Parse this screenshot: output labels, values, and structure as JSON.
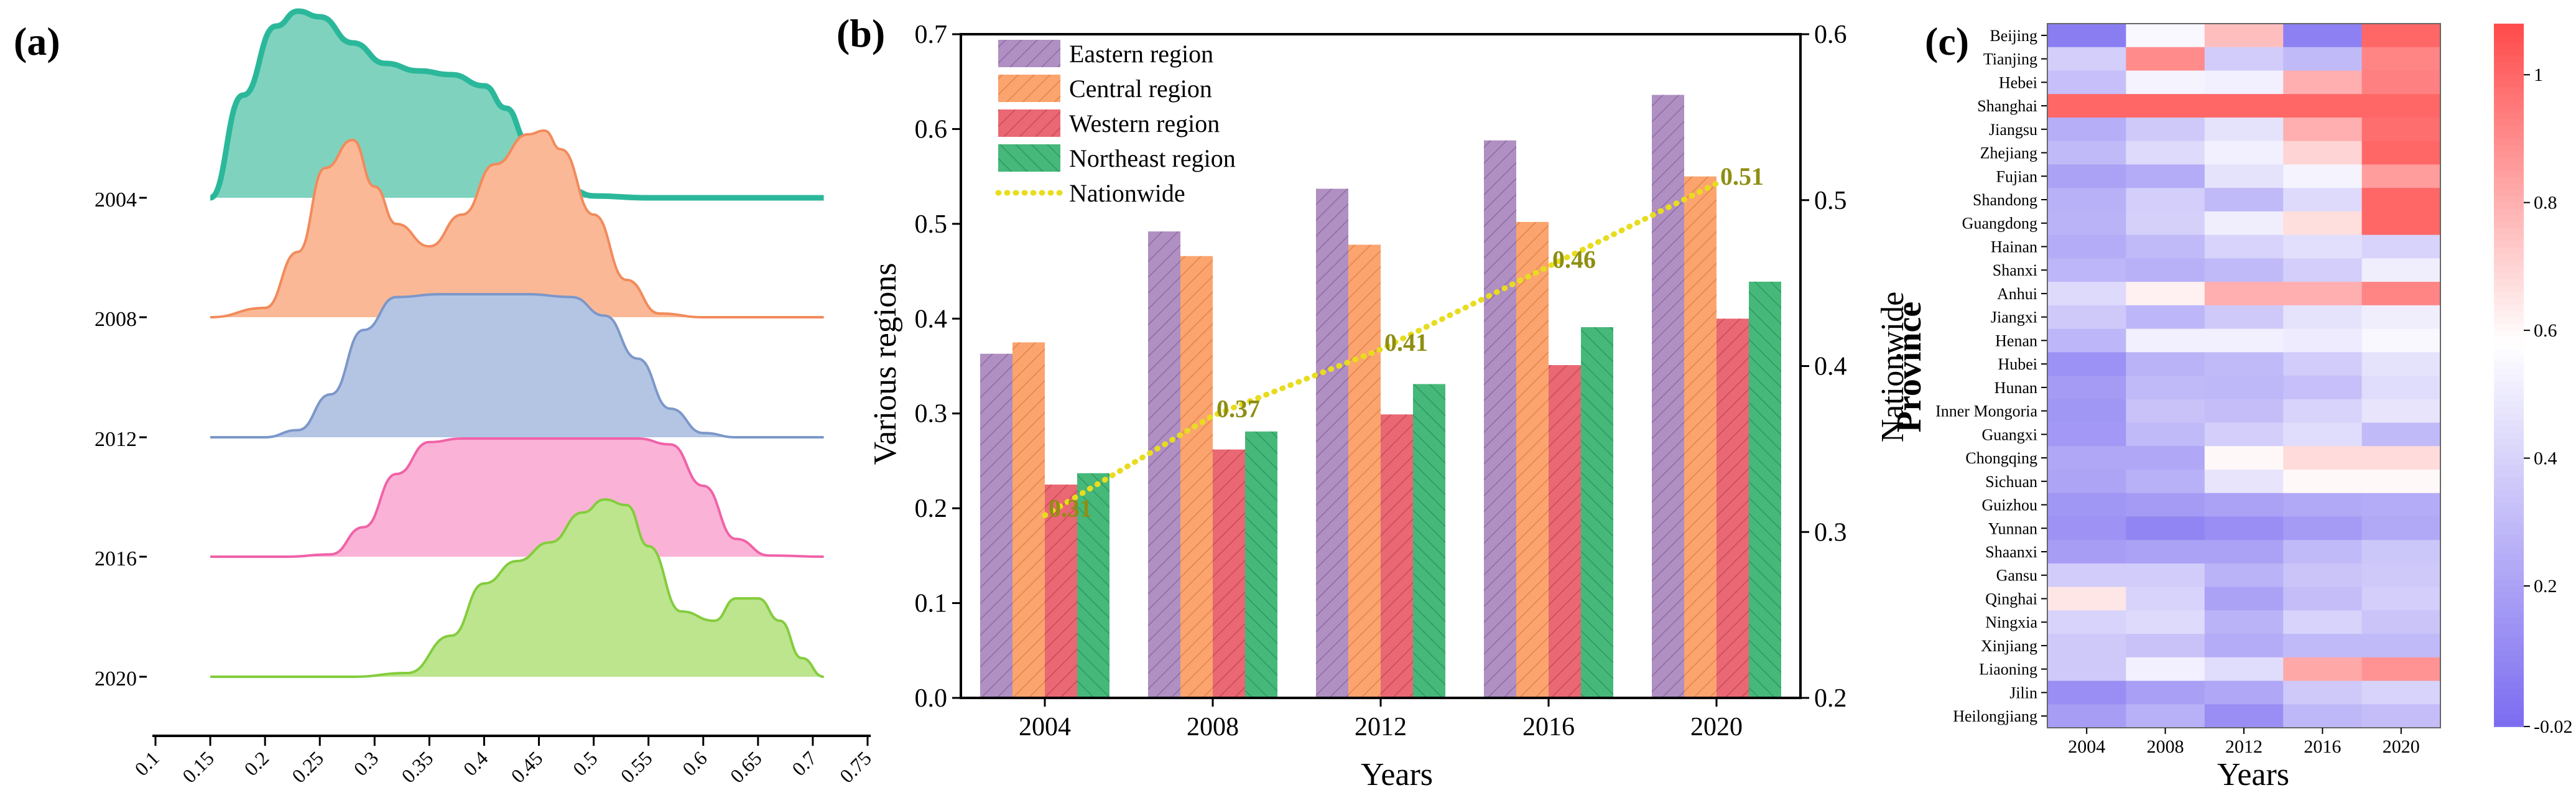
{
  "chart_data": [
    {
      "type": "area",
      "panel_label": "(a)",
      "subtype": "ridgeline-density",
      "categories": [
        "2004",
        "2008",
        "2012",
        "2016",
        "2020"
      ],
      "xlim": [
        0.1,
        0.75
      ],
      "x_ticks": [
        "0.1",
        "0.15",
        "0.2",
        "0.25",
        "0.3",
        "0.35",
        "0.4",
        "0.45",
        "0.5",
        "0.55",
        "0.6",
        "0.65",
        "0.7",
        "0.75"
      ],
      "series": [
        {
          "name": "2004",
          "color": "#2BB89A",
          "fill": "#7FD3BE",
          "x": [
            0.15,
            0.18,
            0.21,
            0.23,
            0.25,
            0.28,
            0.31,
            0.34,
            0.37,
            0.4,
            0.42,
            0.44,
            0.46,
            0.48,
            0.5,
            0.55,
            0.6,
            0.65,
            0.71
          ],
          "density": [
            0.0,
            0.55,
            0.92,
            1.0,
            0.97,
            0.83,
            0.72,
            0.68,
            0.66,
            0.6,
            0.48,
            0.3,
            0.12,
            0.04,
            0.01,
            0.0,
            0.0,
            0.0,
            0.0
          ]
        },
        {
          "name": "2008",
          "color": "#F28A5B",
          "fill": "#FBB896",
          "x": [
            0.15,
            0.2,
            0.23,
            0.255,
            0.28,
            0.3,
            0.32,
            0.35,
            0.38,
            0.41,
            0.44,
            0.455,
            0.47,
            0.5,
            0.53,
            0.56,
            0.6,
            0.65,
            0.71
          ],
          "density": [
            0.0,
            0.05,
            0.35,
            0.8,
            0.95,
            0.7,
            0.5,
            0.38,
            0.55,
            0.82,
            0.98,
            1.0,
            0.9,
            0.55,
            0.2,
            0.02,
            0.0,
            0.0,
            0.0
          ]
        },
        {
          "name": "2012",
          "color": "#7C97C9",
          "fill": "#B4C5E4",
          "x": [
            0.15,
            0.2,
            0.23,
            0.26,
            0.29,
            0.32,
            0.36,
            0.4,
            0.44,
            0.48,
            0.51,
            0.54,
            0.57,
            0.6,
            0.63,
            0.66,
            0.71
          ],
          "density": [
            0.0,
            0.0,
            0.05,
            0.3,
            0.75,
            0.98,
            1.0,
            1.0,
            1.0,
            0.98,
            0.85,
            0.55,
            0.2,
            0.03,
            0.0,
            0.0,
            0.0
          ]
        },
        {
          "name": "2016",
          "color": "#F062A8",
          "fill": "#FAB3D6",
          "x": [
            0.15,
            0.22,
            0.26,
            0.29,
            0.32,
            0.35,
            0.38,
            0.42,
            0.46,
            0.5,
            0.54,
            0.57,
            0.6,
            0.63,
            0.66,
            0.71
          ],
          "density": [
            0.0,
            0.0,
            0.02,
            0.25,
            0.7,
            0.97,
            1.0,
            1.0,
            1.0,
            1.0,
            1.0,
            0.95,
            0.6,
            0.15,
            0.01,
            0.0
          ]
        },
        {
          "name": "2020",
          "color": "#84CC3D",
          "fill": "#BCE58E",
          "x": [
            0.15,
            0.28,
            0.33,
            0.37,
            0.4,
            0.43,
            0.46,
            0.49,
            0.51,
            0.53,
            0.55,
            0.58,
            0.61,
            0.63,
            0.65,
            0.67,
            0.69,
            0.71
          ],
          "density": [
            0.0,
            0.0,
            0.02,
            0.22,
            0.5,
            0.62,
            0.72,
            0.88,
            0.95,
            0.92,
            0.7,
            0.35,
            0.3,
            0.42,
            0.42,
            0.3,
            0.1,
            0.0
          ]
        }
      ]
    },
    {
      "type": "bar",
      "panel_label": "(b)",
      "categories": [
        "2004",
        "2008",
        "2012",
        "2016",
        "2020"
      ],
      "series": [
        {
          "name": "Eastern region",
          "color": "#B08FC2",
          "values": [
            0.363,
            0.492,
            0.537,
            0.588,
            0.636
          ]
        },
        {
          "name": "Central region",
          "color": "#FBA46E",
          "values": [
            0.375,
            0.466,
            0.478,
            0.502,
            0.55
          ]
        },
        {
          "name": "Western region",
          "color": "#E96873",
          "values": [
            0.225,
            0.262,
            0.299,
            0.351,
            0.4
          ]
        },
        {
          "name": "Northeast region",
          "color": "#46B87A",
          "values": [
            0.237,
            0.281,
            0.331,
            0.391,
            0.439
          ]
        }
      ],
      "line_series": {
        "name": "Nationwide",
        "color": "#E8DC1E",
        "label_color": "#8E8E12",
        "values": [
          0.31,
          0.37,
          0.41,
          0.46,
          0.51
        ],
        "labels": [
          "0.31",
          "0.37",
          "0.41",
          "0.46",
          "0.51"
        ]
      },
      "xlabel": "Years",
      "ylabel": "Various regions",
      "y2label": "Nationwide",
      "ylim": [
        0.0,
        0.7
      ],
      "y2lim": [
        0.2,
        0.6
      ],
      "y_ticks": [
        "0.0",
        "0.1",
        "0.2",
        "0.3",
        "0.4",
        "0.5",
        "0.6",
        "0.7"
      ],
      "y2_ticks": [
        "0.2",
        "0.3",
        "0.4",
        "0.5",
        "0.6"
      ],
      "legend_position": "top-left"
    },
    {
      "type": "heatmap",
      "panel_label": "(c)",
      "xlabel": "Years",
      "ylabel": "Province",
      "columns": [
        "2004",
        "2008",
        "2012",
        "2016",
        "2020"
      ],
      "rows": [
        "Beijing",
        "Tianjing",
        "Hebei",
        "Shanghai",
        "Jiangsu",
        "Zhejiang",
        "Fujian",
        "Shandong",
        "Guangdong",
        "Hainan",
        "Shanxi",
        "Anhui",
        "Jiangxi",
        "Henan",
        "Hubei",
        "Hunan",
        "Inner Mongoria",
        "Guangxi",
        "Chongqing",
        "Sichuan",
        "Guizhou",
        "Yunnan",
        "Shaanxi",
        "Gansu",
        "Qinghai",
        "Ningxia",
        "Xinjiang",
        "Liaoning",
        "Jilin",
        "Heilongjiang"
      ],
      "values": [
        [
          0.05,
          0.55,
          0.76,
          0.06,
          1.0
        ],
        [
          0.38,
          0.9,
          0.37,
          0.3,
          0.92
        ],
        [
          0.32,
          0.53,
          0.52,
          0.8,
          0.93
        ],
        [
          1.0,
          1.0,
          1.0,
          1.0,
          1.0
        ],
        [
          0.25,
          0.36,
          0.46,
          0.8,
          0.98
        ],
        [
          0.3,
          0.43,
          0.52,
          0.7,
          1.0
        ],
        [
          0.2,
          0.24,
          0.46,
          0.53,
          0.85
        ],
        [
          0.26,
          0.38,
          0.3,
          0.43,
          1.0
        ],
        [
          0.27,
          0.39,
          0.51,
          0.67,
          1.0
        ],
        [
          0.24,
          0.3,
          0.4,
          0.45,
          0.4
        ],
        [
          0.28,
          0.26,
          0.3,
          0.38,
          0.51
        ],
        [
          0.43,
          0.62,
          0.8,
          0.8,
          0.92
        ],
        [
          0.36,
          0.28,
          0.36,
          0.46,
          0.51
        ],
        [
          0.28,
          0.52,
          0.52,
          0.5,
          0.55
        ],
        [
          0.13,
          0.27,
          0.3,
          0.37,
          0.46
        ],
        [
          0.17,
          0.3,
          0.29,
          0.32,
          0.44
        ],
        [
          0.15,
          0.33,
          0.31,
          0.4,
          0.47
        ],
        [
          0.16,
          0.3,
          0.38,
          0.44,
          0.3
        ],
        [
          0.22,
          0.22,
          0.6,
          0.68,
          0.68
        ],
        [
          0.21,
          0.26,
          0.47,
          0.6,
          0.6
        ],
        [
          0.15,
          0.17,
          0.2,
          0.23,
          0.24
        ],
        [
          0.14,
          0.08,
          0.12,
          0.17,
          0.23
        ],
        [
          0.18,
          0.2,
          0.2,
          0.3,
          0.35
        ],
        [
          0.37,
          0.37,
          0.27,
          0.34,
          0.36
        ],
        [
          0.65,
          0.4,
          0.2,
          0.31,
          0.38
        ],
        [
          0.4,
          0.43,
          0.27,
          0.4,
          0.34
        ],
        [
          0.36,
          0.33,
          0.24,
          0.3,
          0.3
        ],
        [
          0.36,
          0.52,
          0.44,
          0.82,
          0.88
        ],
        [
          0.12,
          0.19,
          0.22,
          0.36,
          0.4
        ],
        [
          0.18,
          0.26,
          0.12,
          0.29,
          0.31
        ]
      ],
      "colorbar": {
        "min": -0.02,
        "max": 1.08,
        "ticks": [
          -0.02,
          0.2,
          0.4,
          0.6,
          0.8,
          1.0
        ],
        "tick_labels": [
          "-0.02",
          "0.2",
          "0.4",
          "0.6",
          "0.8",
          "1"
        ],
        "low_color": "#7B6CF0",
        "mid_color": "#FFFFFF",
        "high_color": "#FF4A4A",
        "mid_value": 0.58
      }
    }
  ]
}
